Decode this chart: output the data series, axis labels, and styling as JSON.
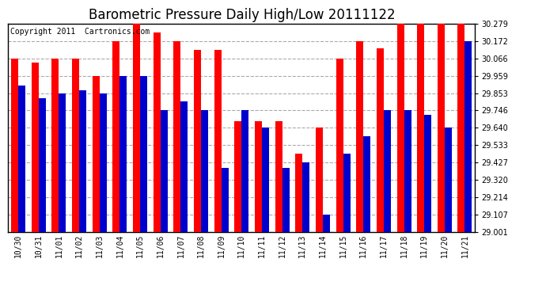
{
  "title": "Barometric Pressure Daily High/Low 20111122",
  "copyright": "Copyright 2011  Cartronics.com",
  "dates": [
    "10/30",
    "10/31",
    "11/01",
    "11/02",
    "11/03",
    "11/04",
    "11/05",
    "11/06",
    "11/07",
    "11/08",
    "11/09",
    "11/10",
    "11/11",
    "11/12",
    "11/13",
    "11/14",
    "11/15",
    "11/16",
    "11/17",
    "11/18",
    "11/19",
    "11/20",
    "11/21"
  ],
  "highs": [
    30.066,
    30.04,
    30.066,
    30.066,
    29.959,
    30.172,
    30.279,
    30.225,
    30.172,
    30.12,
    30.12,
    29.68,
    29.68,
    29.68,
    29.48,
    29.64,
    30.066,
    30.172,
    30.13,
    30.279,
    30.279,
    30.279,
    30.279
  ],
  "lows": [
    29.9,
    29.82,
    29.853,
    29.87,
    29.853,
    29.959,
    29.959,
    29.746,
    29.8,
    29.746,
    29.395,
    29.746,
    29.64,
    29.395,
    29.427,
    29.107,
    29.48,
    29.59,
    29.746,
    29.746,
    29.72,
    29.64,
    30.172
  ],
  "high_color": "#ff0000",
  "low_color": "#0000cc",
  "bg_color": "#ffffff",
  "grid_color": "#aaaaaa",
  "ymin": 29.001,
  "ymax": 30.279,
  "yticks": [
    29.001,
    29.107,
    29.214,
    29.32,
    29.427,
    29.533,
    29.64,
    29.746,
    29.853,
    29.959,
    30.066,
    30.172,
    30.279
  ],
  "title_fontsize": 12,
  "copyright_fontsize": 7,
  "tick_fontsize": 7,
  "bar_width": 0.35
}
